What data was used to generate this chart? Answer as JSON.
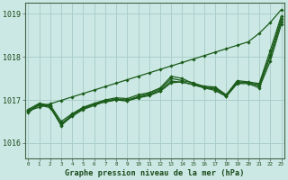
{
  "title": "Graphe pression niveau de la mer (hPa)",
  "bg_color": "#cce8e4",
  "grid_color": "#aacfcb",
  "line_color": "#1a5c1a",
  "marker_color": "#1a5c1a",
  "ylim": [
    1015.65,
    1019.25
  ],
  "xlim": [
    -0.3,
    23.3
  ],
  "yticks": [
    1016,
    1017,
    1018,
    1019
  ],
  "ytick_labels": [
    "1016",
    "1017",
    "1018",
    "1019"
  ],
  "xtick_labels": [
    "0",
    "1",
    "2",
    "3",
    "4",
    "5",
    "6",
    "7",
    "8",
    "9",
    "10",
    "11",
    "12",
    "13",
    "14",
    "15",
    "16",
    "17",
    "18",
    "19",
    "20",
    "21",
    "22",
    "23"
  ],
  "series": [
    [
      1016.75,
      1016.9,
      1016.85,
      1016.4,
      1016.65,
      1016.8,
      1016.9,
      1016.95,
      1017.0,
      1016.98,
      1017.05,
      1017.1,
      1017.2,
      1017.4,
      1017.42,
      1017.35,
      1017.28,
      1017.22,
      1017.08,
      1017.38,
      1017.38,
      1017.28,
      1017.9,
      1018.75
    ],
    [
      1016.7,
      1016.9,
      1016.85,
      1016.45,
      1016.65,
      1016.82,
      1016.9,
      1016.98,
      1017.02,
      1017.0,
      1017.08,
      1017.15,
      1017.25,
      1017.5,
      1017.45,
      1017.4,
      1017.3,
      1017.27,
      1017.1,
      1017.42,
      1017.4,
      1017.35,
      1018.05,
      1018.88
    ],
    [
      1016.78,
      1016.92,
      1016.88,
      1016.5,
      1016.68,
      1016.83,
      1016.92,
      1017.0,
      1017.05,
      1017.03,
      1017.12,
      1017.17,
      1017.28,
      1017.55,
      1017.5,
      1017.38,
      1017.32,
      1017.3,
      1017.12,
      1017.45,
      1017.42,
      1017.38,
      1018.15,
      1018.95
    ],
    [
      1016.72,
      1016.88,
      1016.82,
      1016.42,
      1016.62,
      1016.78,
      1016.87,
      1016.97,
      1017.0,
      1016.98,
      1017.06,
      1017.12,
      1017.22,
      1017.44,
      1017.41,
      1017.36,
      1017.29,
      1017.25,
      1017.09,
      1017.4,
      1017.4,
      1017.32,
      1018.0,
      1018.82
    ]
  ],
  "trend_series": [
    1016.75,
    1016.83,
    1016.91,
    1016.99,
    1017.07,
    1017.15,
    1017.23,
    1017.31,
    1017.39,
    1017.47,
    1017.55,
    1017.63,
    1017.71,
    1017.79,
    1017.87,
    1017.95,
    1018.03,
    1018.11,
    1018.19,
    1018.27,
    1018.35,
    1018.55,
    1018.8,
    1019.1
  ]
}
